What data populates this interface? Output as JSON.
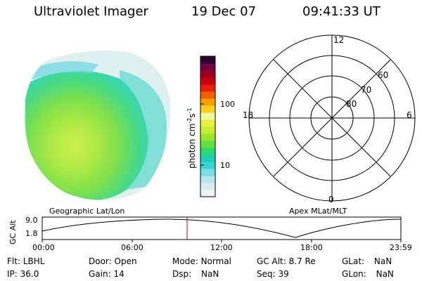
{
  "header": {
    "instrument": "Ultraviolet Imager",
    "date": "19 Dec 07",
    "time": "09:41:33 UT"
  },
  "colorbar": {
    "label": "photon cm",
    "label_sup1": "-2",
    "label_mid": "s",
    "label_sup2": "-1",
    "tick_100": "100",
    "tick_10": "10",
    "colors": [
      "#eef4f4",
      "#d8eef0",
      "#b4e8ec",
      "#7adce4",
      "#38d4d8",
      "#20d0b0",
      "#30d870",
      "#60e040",
      "#98e830",
      "#c8ee30",
      "#e8f040",
      "#f0f8a0",
      "#f8d020",
      "#f8a000",
      "#f06000",
      "#e82010",
      "#c80010",
      "#a00020",
      "#700040",
      "#300030"
    ]
  },
  "polar_plot": {
    "mlt_top": "12",
    "mlt_left": "18",
    "mlt_right": "6",
    "mlt_bottom": "0",
    "lat_60": "60",
    "lat_70": "70",
    "lat_80": "80"
  },
  "labels": {
    "geographic": "Geographic Lat/Lon",
    "apex": "Apex MLat/MLT"
  },
  "orbit_plot": {
    "ylabel": "GC Alt",
    "y_top": "9.0",
    "y_bottom": "1.8",
    "x_ticks": [
      "00:00",
      "06:00",
      "12:00",
      "18:00",
      "23:59"
    ],
    "current_time_color": "#e00000"
  },
  "status": {
    "flt_label": "Flt:",
    "flt_value": "LBHL",
    "ip_label": "IP:",
    "ip_value": "36.0",
    "door_label": "Door:",
    "door_value": "Open",
    "gain_label": "Gain:",
    "gain_value": "14",
    "mode_label": "Mode:",
    "mode_value": "Normal",
    "dsp_label": "Dsp:",
    "dsp_value": "NaN",
    "gcalt_label": "GC Alt:",
    "gcalt_value": "8.7 Re",
    "seq_label": "Seq:",
    "seq_value": "39",
    "glat_label": "GLat:",
    "glat_value": "NaN",
    "glon_label": "GLon:",
    "glon_value": "NaN"
  }
}
